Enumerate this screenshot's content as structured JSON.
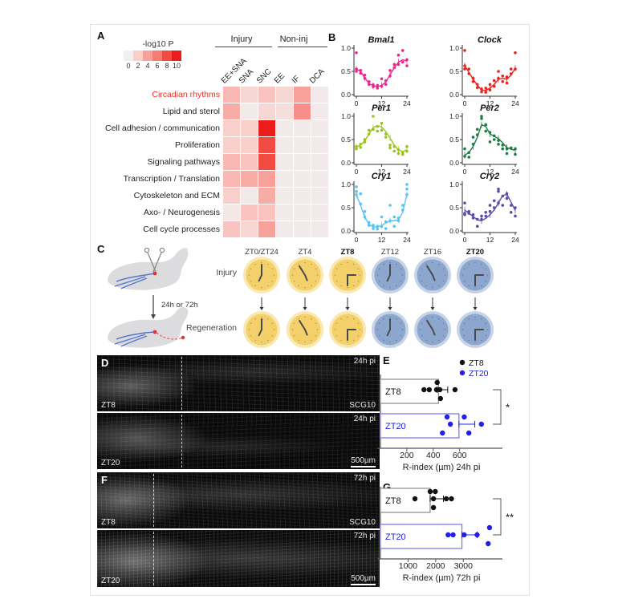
{
  "panelA": {
    "label": "A",
    "legend_title": "-log10 P",
    "legend_values": [
      "0",
      "2",
      "4",
      "6",
      "8",
      "10"
    ],
    "legend_colors": [
      "#f1efef",
      "#f9cfcb",
      "#f8a09a",
      "#f67b73",
      "#f24b42",
      "#ea1c1c"
    ],
    "group_headers": [
      {
        "label": "Injury"
      },
      {
        "label": "Non-inj"
      }
    ]
  },
  "panelB": {
    "label": "B"
  },
  "panelC": {
    "label": "C",
    "row_labels": [
      "Injury",
      "Regeneration"
    ],
    "arrow_label": "24h or 72h",
    "timepoints": [
      {
        "label": "ZT0/ZT24",
        "bold": false,
        "phase": "day",
        "hand": "J"
      },
      {
        "label": "ZT4",
        "bold": false,
        "phase": "day",
        "hand": "V"
      },
      {
        "label": "ZT8",
        "bold": true,
        "phase": "day",
        "hand": "L"
      },
      {
        "label": "ZT12",
        "bold": false,
        "phase": "night",
        "hand": "J"
      },
      {
        "label": "ZT16",
        "bold": false,
        "phase": "night",
        "hand": "V"
      },
      {
        "label": "ZT20",
        "bold": true,
        "phase": "night",
        "hand": "L"
      }
    ],
    "colors": {
      "day": "#F3D06A",
      "day_halo": "#F9E8B0",
      "night": "#8CA6CE",
      "night_halo": "#C6D3E7",
      "hand": "#4a4a4a"
    }
  },
  "panelD": {
    "label": "D",
    "top_image": {
      "time": "24h pi",
      "zt": "ZT8",
      "marker": "SCG10"
    },
    "bottom_image": {
      "time": "24h pi",
      "zt": "ZT20",
      "scale": "500µm"
    }
  },
  "panelE": {
    "label": "E"
  },
  "panelF": {
    "label": "F",
    "top_image": {
      "time": "72h pi",
      "zt": "ZT8",
      "marker": "SCG10"
    },
    "bottom_image": {
      "time": "72h pi",
      "zt": "ZT20",
      "scale": "500µm"
    }
  },
  "panelG": {
    "label": "G"
  },
  "chart_data": [
    {
      "type": "heatmap",
      "title": "-log10 P",
      "columns": [
        "EE+SNA",
        "SNA",
        "SNC",
        "EE",
        "IF",
        "DCA"
      ],
      "col_groups": [
        {
          "label": "Injury",
          "span": 3
        },
        {
          "label": "Non-inj",
          "span": 3
        }
      ],
      "rows": [
        {
          "label": "Circadian rhythms",
          "highlight": true
        },
        {
          "label": "Lipid and sterol",
          "highlight": false
        },
        {
          "label": "Cell adhesion / communication",
          "highlight": false
        },
        {
          "label": "Proliferation",
          "highlight": false
        },
        {
          "label": "Signaling pathways",
          "highlight": false
        },
        {
          "label": "Transcription / Translation",
          "highlight": false
        },
        {
          "label": "Cytoskeleton and ECM",
          "highlight": false
        },
        {
          "label": "Axo- / Neurogenesis",
          "highlight": false
        },
        {
          "label": "Cell cycle processes",
          "highlight": false
        }
      ],
      "values": [
        [
          3,
          1.5,
          2.5,
          1.5,
          4,
          0.3
        ],
        [
          3.5,
          0.3,
          1.5,
          1,
          5,
          0.3
        ],
        [
          2,
          2,
          10,
          0.3,
          0.3,
          0.3
        ],
        [
          2,
          2,
          8,
          0.3,
          0.3,
          0.3
        ],
        [
          3,
          2.5,
          8,
          0.3,
          0.3,
          0.3
        ],
        [
          3,
          3.5,
          4,
          0.3,
          0.3,
          0.3
        ],
        [
          2,
          0.3,
          3.5,
          0.3,
          0.3,
          0.3
        ],
        [
          0.5,
          2.5,
          2.5,
          0.3,
          0.3,
          0.3
        ],
        [
          2.5,
          1.5,
          4,
          0.3,
          0.3,
          0.3
        ]
      ],
      "scale": {
        "min": 0,
        "max": 10,
        "stops": [
          [
            0,
            "#f1efef"
          ],
          [
            2,
            "#f9cfcb"
          ],
          [
            4,
            "#f8a09a"
          ],
          [
            6,
            "#f67b73"
          ],
          [
            8,
            "#f24b42"
          ],
          [
            10,
            "#ea1c1c"
          ]
        ]
      },
      "highlight_color": "#e63329"
    },
    {
      "type": "line",
      "title": "Bmal1",
      "color": "#EC268F",
      "x": [
        0,
        2,
        4,
        6,
        8,
        10,
        12,
        14,
        16,
        18,
        20,
        22,
        24
      ],
      "x_ticks": [
        0,
        12,
        24
      ],
      "y_ticks": [
        "0.0",
        "0.5",
        "1.0"
      ],
      "ylim": [
        0,
        1
      ],
      "y": [
        0.55,
        0.5,
        0.36,
        0.24,
        0.19,
        0.17,
        0.2,
        0.27,
        0.43,
        0.58,
        0.7,
        0.75,
        0.72
      ],
      "points": [
        [
          0,
          0.9
        ],
        [
          0,
          0.55
        ],
        [
          0,
          0.5
        ],
        [
          2,
          0.52
        ],
        [
          2,
          0.46
        ],
        [
          4,
          0.35
        ],
        [
          4,
          0.42
        ],
        [
          6,
          0.22
        ],
        [
          6,
          0.28
        ],
        [
          8,
          0.17
        ],
        [
          8,
          0.21
        ],
        [
          10,
          0.14
        ],
        [
          10,
          0.2
        ],
        [
          12,
          0.18
        ],
        [
          12,
          0.34
        ],
        [
          14,
          0.22
        ],
        [
          14,
          0.3
        ],
        [
          16,
          0.4
        ],
        [
          16,
          0.52
        ],
        [
          18,
          0.58
        ],
        [
          18,
          0.65
        ],
        [
          20,
          0.65
        ],
        [
          20,
          0.85
        ],
        [
          22,
          0.7
        ],
        [
          22,
          0.95
        ],
        [
          24,
          0.62
        ],
        [
          24,
          0.75
        ]
      ]
    },
    {
      "type": "line",
      "title": "Clock",
      "color": "#E8231E",
      "x": [
        0,
        2,
        4,
        6,
        8,
        10,
        12,
        14,
        16,
        18,
        20,
        22,
        24
      ],
      "x_ticks": [
        0,
        12,
        24
      ],
      "y_ticks": [
        "0.0",
        "0.5",
        "1.0"
      ],
      "ylim": [
        0,
        1
      ],
      "y": [
        0.62,
        0.48,
        0.33,
        0.2,
        0.1,
        0.09,
        0.14,
        0.22,
        0.33,
        0.35,
        0.33,
        0.42,
        0.57
      ],
      "points": [
        [
          0,
          0.95
        ],
        [
          0,
          0.62
        ],
        [
          0,
          0.55
        ],
        [
          2,
          0.45
        ],
        [
          2,
          0.55
        ],
        [
          4,
          0.28
        ],
        [
          4,
          0.35
        ],
        [
          6,
          0.15
        ],
        [
          6,
          0.22
        ],
        [
          8,
          0.06
        ],
        [
          8,
          0.12
        ],
        [
          10,
          0.05
        ],
        [
          10,
          0.14
        ],
        [
          12,
          0.1
        ],
        [
          12,
          0.22
        ],
        [
          14,
          0.18
        ],
        [
          14,
          0.3
        ],
        [
          16,
          0.35
        ],
        [
          16,
          0.5
        ],
        [
          18,
          0.28
        ],
        [
          18,
          0.4
        ],
        [
          20,
          0.25
        ],
        [
          20,
          0.38
        ],
        [
          22,
          0.45
        ],
        [
          22,
          0.55
        ],
        [
          24,
          0.9
        ],
        [
          24,
          0.55
        ]
      ]
    },
    {
      "type": "line",
      "title": "Per1",
      "color": "#9CC31D",
      "x": [
        0,
        2,
        4,
        6,
        8,
        10,
        12,
        14,
        16,
        18,
        20,
        22,
        24
      ],
      "x_ticks": [
        0,
        12,
        24
      ],
      "y_ticks": [
        "0.0",
        "0.5",
        "1.0"
      ],
      "ylim": [
        0,
        1
      ],
      "y": [
        0.34,
        0.38,
        0.47,
        0.62,
        0.76,
        0.8,
        0.77,
        0.67,
        0.53,
        0.38,
        0.28,
        0.24,
        0.28
      ],
      "points": [
        [
          0,
          0.35
        ],
        [
          0,
          0.3
        ],
        [
          2,
          0.4
        ],
        [
          2,
          0.33
        ],
        [
          4,
          0.5
        ],
        [
          4,
          0.45
        ],
        [
          6,
          0.62
        ],
        [
          6,
          0.7
        ],
        [
          8,
          1.0
        ],
        [
          8,
          0.72
        ],
        [
          10,
          0.78
        ],
        [
          10,
          0.68
        ],
        [
          12,
          0.85
        ],
        [
          12,
          0.7
        ],
        [
          14,
          0.62
        ],
        [
          14,
          0.55
        ],
        [
          16,
          0.38
        ],
        [
          16,
          0.32
        ],
        [
          18,
          0.35
        ],
        [
          18,
          0.25
        ],
        [
          20,
          0.2
        ],
        [
          20,
          0.28
        ],
        [
          22,
          0.22
        ],
        [
          22,
          0.18
        ],
        [
          24,
          0.35
        ],
        [
          24,
          0.25
        ]
      ]
    },
    {
      "type": "line",
      "title": "Per2",
      "color": "#1F7A44",
      "x": [
        0,
        2,
        4,
        6,
        8,
        10,
        12,
        14,
        16,
        18,
        20,
        22,
        24
      ],
      "x_ticks": [
        0,
        12,
        24
      ],
      "y_ticks": [
        "0.0",
        "0.5",
        "1.0"
      ],
      "ylim": [
        0,
        1
      ],
      "y": [
        0.16,
        0.22,
        0.35,
        0.55,
        0.82,
        0.78,
        0.62,
        0.57,
        0.52,
        0.43,
        0.33,
        0.29,
        0.27
      ],
      "points": [
        [
          0,
          0.3
        ],
        [
          0,
          0.14
        ],
        [
          2,
          0.12
        ],
        [
          2,
          0.22
        ],
        [
          4,
          0.55
        ],
        [
          4,
          0.4
        ],
        [
          6,
          0.72
        ],
        [
          6,
          0.6
        ],
        [
          8,
          1.0
        ],
        [
          8,
          0.95
        ],
        [
          10,
          0.82
        ],
        [
          10,
          0.68
        ],
        [
          12,
          0.45
        ],
        [
          12,
          0.65
        ],
        [
          14,
          0.58
        ],
        [
          14,
          0.5
        ],
        [
          16,
          0.48
        ],
        [
          16,
          0.4
        ],
        [
          18,
          0.38
        ],
        [
          18,
          0.3
        ],
        [
          20,
          0.3
        ],
        [
          20,
          0.2
        ],
        [
          22,
          0.32
        ],
        [
          24,
          0.3
        ],
        [
          24,
          0.18
        ]
      ]
    },
    {
      "type": "line",
      "title": "Cry1",
      "color": "#56C5F2",
      "x": [
        0,
        2,
        4,
        6,
        8,
        10,
        12,
        14,
        16,
        18,
        20,
        22,
        24
      ],
      "x_ticks": [
        0,
        12,
        24
      ],
      "y_ticks": [
        "0.0",
        "0.5",
        "1.0"
      ],
      "ylim": [
        0,
        1
      ],
      "y": [
        0.78,
        0.55,
        0.3,
        0.14,
        0.09,
        0.08,
        0.12,
        0.17,
        0.22,
        0.22,
        0.24,
        0.4,
        0.78
      ],
      "points": [
        [
          0,
          0.95
        ],
        [
          0,
          0.85
        ],
        [
          0,
          0.78
        ],
        [
          2,
          0.8
        ],
        [
          2,
          0.58
        ],
        [
          4,
          0.42
        ],
        [
          4,
          0.3
        ],
        [
          6,
          0.12
        ],
        [
          6,
          0.18
        ],
        [
          8,
          0.05
        ],
        [
          8,
          0.12
        ],
        [
          10,
          0.04
        ],
        [
          10,
          0.1
        ],
        [
          12,
          0.1
        ],
        [
          12,
          0.3
        ],
        [
          14,
          0.05
        ],
        [
          14,
          0.2
        ],
        [
          16,
          0.22
        ],
        [
          16,
          0.55
        ],
        [
          18,
          0.1
        ],
        [
          18,
          0.3
        ],
        [
          20,
          0.22
        ],
        [
          20,
          0.28
        ],
        [
          22,
          0.45
        ],
        [
          22,
          0.55
        ],
        [
          24,
          1.0
        ],
        [
          24,
          0.9
        ],
        [
          24,
          0.78
        ]
      ]
    },
    {
      "type": "line",
      "title": "Cry2",
      "color": "#584EA8",
      "x": [
        0,
        2,
        4,
        6,
        8,
        10,
        12,
        14,
        16,
        18,
        20,
        22,
        24
      ],
      "x_ticks": [
        0,
        12,
        24
      ],
      "y_ticks": [
        "0.0",
        "0.5",
        "1.0"
      ],
      "ylim": [
        0,
        1
      ],
      "y": [
        0.45,
        0.38,
        0.31,
        0.24,
        0.22,
        0.27,
        0.35,
        0.45,
        0.6,
        0.76,
        0.79,
        0.62,
        0.44
      ],
      "points": [
        [
          0,
          0.6
        ],
        [
          0,
          0.38
        ],
        [
          0,
          0.35
        ],
        [
          2,
          0.38
        ],
        [
          2,
          0.42
        ],
        [
          4,
          0.28
        ],
        [
          4,
          0.35
        ],
        [
          6,
          0.1
        ],
        [
          6,
          0.25
        ],
        [
          8,
          0.25
        ],
        [
          8,
          0.32
        ],
        [
          10,
          0.32
        ],
        [
          10,
          0.4
        ],
        [
          12,
          0.42
        ],
        [
          12,
          0.55
        ],
        [
          14,
          0.65
        ],
        [
          14,
          0.5
        ],
        [
          16,
          0.9
        ],
        [
          16,
          0.85
        ],
        [
          16,
          0.6
        ],
        [
          18,
          0.55
        ],
        [
          18,
          0.75
        ],
        [
          20,
          0.7
        ],
        [
          20,
          0.8
        ],
        [
          22,
          0.4
        ],
        [
          22,
          0.55
        ],
        [
          24,
          0.5
        ],
        [
          24,
          0.32
        ]
      ]
    },
    {
      "type": "dotbar",
      "id": "E",
      "xlabel": "R-index (µm) 24h pi",
      "x_ticks": [
        200,
        400,
        600
      ],
      "x_max": 900,
      "significance": "*",
      "legend": [
        {
          "label": "ZT8",
          "color": "#111111"
        },
        {
          "label": "ZT20",
          "color": "#2020e8"
        }
      ],
      "groups": [
        {
          "label": "ZT8",
          "color": "#111111",
          "bar_color": "#888888",
          "bar": 440,
          "err": [
            430,
            510
          ],
          "points": [
            [
              430,
              -1
            ],
            [
              330,
              0
            ],
            [
              370,
              0
            ],
            [
              425,
              0
            ],
            [
              450,
              0
            ],
            [
              565,
              0
            ],
            [
              455,
              1
            ]
          ]
        },
        {
          "label": "ZT20",
          "color": "#2020e8",
          "bar_color": "#7070f0",
          "bar": 595,
          "err": [
            595,
            715
          ],
          "points": [
            [
              505,
              -1
            ],
            [
              635,
              -1
            ],
            [
              530,
              0
            ],
            [
              765,
              0
            ],
            [
              470,
              1
            ],
            [
              670,
              1
            ]
          ]
        }
      ]
    },
    {
      "type": "dotbar",
      "id": "G",
      "xlabel": "R-index (µm) 72h pi",
      "x_ticks": [
        1000,
        2000,
        3000
      ],
      "x_max": 4300,
      "significance": "**",
      "legend": [],
      "groups": [
        {
          "label": "ZT8",
          "color": "#111111",
          "bar_color": "#888888",
          "bar": 1800,
          "err": [
            1800,
            2280
          ],
          "points": [
            [
              1800,
              -1
            ],
            [
              1985,
              -1
            ],
            [
              1250,
              0
            ],
            [
              1920,
              0
            ],
            [
              2385,
              0
            ],
            [
              2570,
              0
            ],
            [
              1920,
              1
            ]
          ]
        },
        {
          "label": "ZT20",
          "color": "#2020e8",
          "bar_color": "#7070f0",
          "bar": 2950,
          "err": [
            2950,
            3500
          ],
          "points": [
            [
              3950,
              -1
            ],
            [
              2450,
              0
            ],
            [
              2630,
              0
            ],
            [
              3030,
              0
            ],
            [
              3900,
              1
            ],
            [
              3500,
              0
            ]
          ]
        }
      ]
    }
  ]
}
